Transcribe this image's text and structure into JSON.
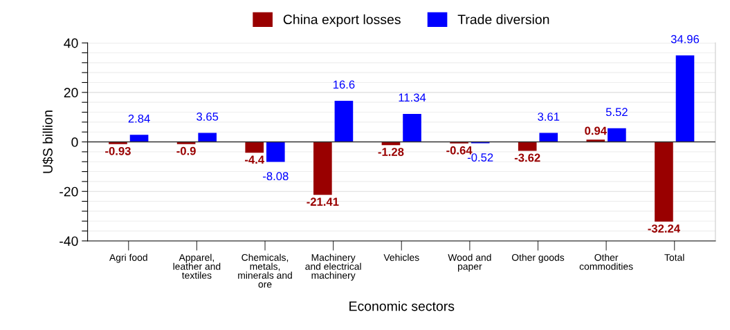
{
  "chart_data": {
    "type": "bar",
    "xlabel": "Economic sectors",
    "ylabel": "U$S billion",
    "categories": [
      "Agri food",
      "Apparel,\nleather and\ntextiles",
      "Chemicals,\nmetals,\nminerals and\nore",
      "Machinery\nand electrical\nmachinery",
      "Vehicles",
      "Wood and\npaper",
      "Other goods",
      "Other\ncommodities",
      "Total"
    ],
    "series": [
      {
        "name": "China export losses",
        "color": "#990000",
        "values": [
          -0.93,
          -0.9,
          -4.4,
          -21.41,
          -1.28,
          -0.64,
          -3.62,
          0.94,
          -32.24
        ]
      },
      {
        "name": "Trade diversion",
        "color": "#0000ff",
        "values": [
          2.84,
          3.65,
          -8.08,
          16.6,
          11.34,
          -0.52,
          3.61,
          5.52,
          34.96
        ]
      }
    ],
    "ylim": [
      -40,
      40
    ],
    "yticks": [
      -40,
      {
        "value": -36,
        "label": null
      },
      {
        "value": -32,
        "label": null
      },
      {
        "value": -28,
        "label": null
      },
      {
        "value": -24,
        "label": null
      },
      -20,
      {
        "value": -16,
        "label": null
      },
      {
        "value": -12,
        "label": null
      },
      {
        "value": -8,
        "label": null
      },
      {
        "value": -4,
        "label": null
      },
      0,
      {
        "value": 4,
        "label": null
      },
      {
        "value": 8,
        "label": null
      },
      {
        "value": 12,
        "label": null
      },
      {
        "value": 16,
        "label": null
      },
      20,
      {
        "value": 24,
        "label": null
      },
      {
        "value": 28,
        "label": null
      },
      {
        "value": 32,
        "label": null
      },
      {
        "value": 36,
        "label": null
      },
      40
    ],
    "grid": "y",
    "legend": "top",
    "data_labels": true
  }
}
